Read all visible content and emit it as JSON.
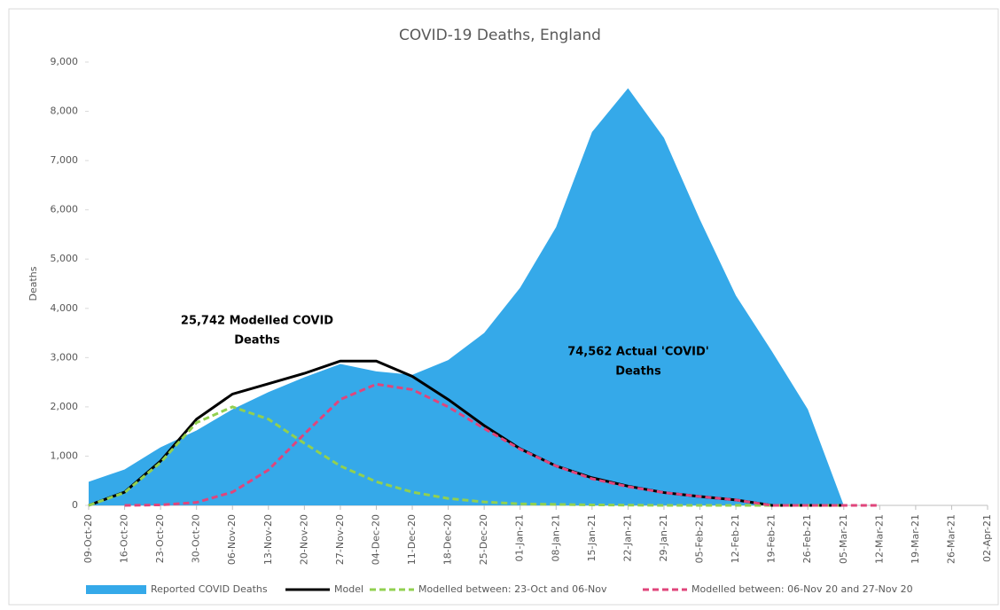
{
  "chart_data": {
    "type": "area-line",
    "title": "COVID-19 Deaths, England",
    "y_label": "Deaths",
    "categories": [
      "09-Oct-20",
      "16-Oct-20",
      "23-Oct-20",
      "30-Oct-20",
      "06-Nov-20",
      "13-Nov-20",
      "20-Nov-20",
      "27-Nov-20",
      "04-Dec-20",
      "11-Dec-20",
      "18-Dec-20",
      "25-Dec-20",
      "01-Jan-21",
      "08-Jan-21",
      "15-Jan-21",
      "22-Jan-21",
      "29-Jan-21",
      "05-Feb-21",
      "12-Feb-21",
      "19-Feb-21",
      "26-Feb-21",
      "05-Mar-21",
      "12-Mar-21",
      "19-Mar-21",
      "26-Mar-21",
      "02-Apr-21"
    ],
    "series": [
      {
        "name": "Reported COVID Deaths",
        "kind": "area",
        "color": "#35a9e9",
        "values": [
          480,
          730,
          1180,
          1520,
          1950,
          2300,
          2600,
          2870,
          2720,
          2650,
          2950,
          3500,
          4420,
          5650,
          7580,
          8470,
          7460,
          5800,
          4260,
          3130,
          1950,
          0,
          null,
          null,
          null,
          null
        ]
      },
      {
        "name": "Model",
        "kind": "line",
        "color": "#000000",
        "values": [
          0,
          270,
          900,
          1750,
          2260,
          2470,
          2680,
          2930,
          2930,
          2620,
          2150,
          1620,
          1150,
          800,
          560,
          390,
          260,
          180,
          110,
          0,
          0,
          0,
          null,
          null,
          null,
          null
        ]
      },
      {
        "name": "Modelled between: 23-Oct and 06-Nov",
        "kind": "dashed",
        "color": "#92d050",
        "values": [
          0,
          260,
          870,
          1680,
          2000,
          1750,
          1260,
          800,
          480,
          270,
          140,
          70,
          30,
          20,
          10,
          5,
          0,
          0,
          0,
          0,
          0,
          0,
          null,
          null,
          null,
          null
        ]
      },
      {
        "name": "Modelled between: 06-Nov 20 and 27-Nov 20",
        "kind": "dashed",
        "color": "#e0457b",
        "values": [
          null,
          0,
          10,
          60,
          270,
          720,
          1450,
          2150,
          2460,
          2350,
          2000,
          1560,
          1140,
          800,
          540,
          380,
          260,
          180,
          110,
          0,
          0,
          0,
          0,
          null,
          null,
          null
        ]
      }
    ],
    "ylim": [
      0,
      9000
    ],
    "yticks": [
      0,
      {
        "value": 1000,
        "label": "1,000"
      },
      {
        "value": 2000,
        "label": "2,000"
      },
      {
        "value": 3000,
        "label": "3,000"
      },
      {
        "value": 4000,
        "label": "4,000"
      },
      {
        "value": 5000,
        "label": "5,000"
      },
      {
        "value": 6000,
        "label": "6,000"
      },
      {
        "value": 7000,
        "label": "7,000"
      },
      {
        "value": 8000,
        "label": "8,000"
      },
      {
        "value": 9000,
        "label": "9,000"
      }
    ],
    "annotations": [
      {
        "lines": [
          "25,742 Modelled COVID",
          "Deaths"
        ]
      },
      {
        "lines": [
          "74,562 Actual 'COVID'",
          "Deaths"
        ]
      }
    ]
  }
}
